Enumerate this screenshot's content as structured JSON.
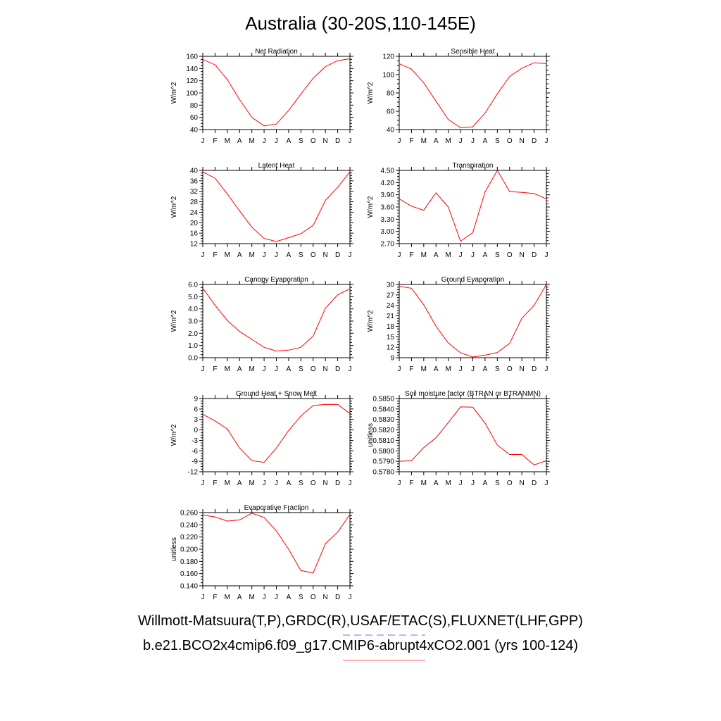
{
  "title": "Australia (30-20S,110-145E)",
  "colors": {
    "line": "#ff0000",
    "axis": "#000000",
    "legend_obs": "#6f6fff",
    "legend_model": "#ff5a5a"
  },
  "legend": {
    "obs": "Willmott-Matsuura(T,P),GRDC(R),USAF/ETAC(S),FLUXNET(LHF,GPP)",
    "model": "b.e21.BCO2x4cmip6.f09_g17.CMIP6-abrupt4xCO2.001 (yrs 100-124)"
  },
  "chart_data": [
    {
      "type": "line",
      "title": "Net Radiation",
      "ylabel": "W/m^2",
      "ylim": [
        40,
        160
      ],
      "yticks": [
        "40",
        "60",
        "80",
        "100",
        "120",
        "140",
        "160"
      ],
      "categories": [
        "J",
        "F",
        "M",
        "A",
        "M",
        "J",
        "J",
        "A",
        "S",
        "O",
        "N",
        "D",
        "J"
      ],
      "values": [
        155,
        146,
        122,
        89,
        60,
        46,
        49,
        71,
        98,
        124,
        143,
        153,
        156
      ]
    },
    {
      "type": "line",
      "title": "Sensible Heat",
      "ylabel": "W/m^2",
      "ylim": [
        40,
        120
      ],
      "yticks": [
        "40",
        "60",
        "80",
        "100",
        "120"
      ],
      "categories": [
        "J",
        "F",
        "M",
        "A",
        "M",
        "J",
        "J",
        "A",
        "S",
        "O",
        "N",
        "D",
        "J"
      ],
      "values": [
        112,
        106,
        91,
        71,
        51,
        42,
        43,
        58,
        79,
        98,
        107,
        113,
        112
      ]
    },
    {
      "type": "line",
      "title": "Latent Heat",
      "ylabel": "W/m^2",
      "ylim": [
        12,
        40
      ],
      "yticks": [
        "12",
        "16",
        "20",
        "24",
        "28",
        "32",
        "36",
        "40"
      ],
      "categories": [
        "J",
        "F",
        "M",
        "A",
        "M",
        "J",
        "J",
        "A",
        "S",
        "O",
        "N",
        "D",
        "J"
      ],
      "values": [
        39.5,
        37.0,
        31.0,
        24.5,
        18.3,
        14.0,
        12.8,
        14.3,
        15.8,
        19.0,
        28.5,
        33.5,
        39.5
      ]
    },
    {
      "type": "line",
      "title": "Transpiration",
      "ylabel": "W/m^2",
      "ylim": [
        2.7,
        4.5
      ],
      "yticks": [
        "2.70",
        "3.00",
        "3.30",
        "3.60",
        "3.90",
        "4.20",
        "4.50"
      ],
      "categories": [
        "J",
        "F",
        "M",
        "A",
        "M",
        "J",
        "J",
        "A",
        "S",
        "O",
        "N",
        "D",
        "J"
      ],
      "values": [
        3.8,
        3.62,
        3.52,
        3.95,
        3.6,
        2.76,
        2.97,
        3.97,
        4.5,
        3.98,
        3.96,
        3.93,
        3.8
      ]
    },
    {
      "type": "line",
      "title": "Canopy Evaporation",
      "ylabel": "W/m^2",
      "ylim": [
        0,
        6
      ],
      "yticks": [
        "0.0",
        "1.0",
        "2.0",
        "3.0",
        "4.0",
        "5.0",
        "6.0"
      ],
      "categories": [
        "J",
        "F",
        "M",
        "A",
        "M",
        "J",
        "J",
        "A",
        "S",
        "O",
        "N",
        "D",
        "J"
      ],
      "values": [
        5.7,
        4.3,
        3.05,
        2.15,
        1.5,
        0.85,
        0.55,
        0.62,
        0.85,
        1.78,
        4.05,
        5.15,
        5.65
      ]
    },
    {
      "type": "line",
      "title": "Ground Evaporation",
      "ylabel": "W/m^2",
      "ylim": [
        9,
        30
      ],
      "yticks": [
        "9",
        "12",
        "15",
        "18",
        "21",
        "24",
        "27",
        "30"
      ],
      "categories": [
        "J",
        "F",
        "M",
        "A",
        "M",
        "J",
        "J",
        "A",
        "S",
        "O",
        "N",
        "D",
        "J"
      ],
      "values": [
        29.5,
        28.9,
        24.2,
        18.0,
        13.2,
        10.4,
        9.2,
        9.7,
        10.5,
        13.1,
        20.3,
        24.0,
        30.0
      ]
    },
    {
      "type": "line",
      "title": "Ground Heat + Snow Melt",
      "ylabel": "W/m^2",
      "ylim": [
        -12,
        9
      ],
      "yticks": [
        "-12",
        "-9",
        "-6",
        "-3",
        "0",
        "3",
        "6",
        "9"
      ],
      "categories": [
        "J",
        "F",
        "M",
        "A",
        "M",
        "J",
        "J",
        "A",
        "S",
        "O",
        "N",
        "D",
        "J"
      ],
      "values": [
        4.5,
        2.6,
        0.3,
        -5.2,
        -8.8,
        -9.3,
        -5.2,
        -0.2,
        4.0,
        7.0,
        7.3,
        7.3,
        4.7
      ]
    },
    {
      "type": "line",
      "title": "Soil moisture factor (BTRAN or BTRANMN)",
      "ylabel": "unitless",
      "ylim": [
        0.578,
        0.585
      ],
      "yticks": [
        "0.5780",
        "0.5790",
        "0.5800",
        "0.5810",
        "0.5820",
        "0.5830",
        "0.5840",
        "0.5850"
      ],
      "categories": [
        "J",
        "F",
        "M",
        "A",
        "M",
        "J",
        "J",
        "A",
        "S",
        "O",
        "N",
        "D",
        "J"
      ],
      "values": [
        0.579,
        0.57905,
        0.5803,
        0.58125,
        0.5827,
        0.5842,
        0.58417,
        0.58265,
        0.58055,
        0.57965,
        0.57965,
        0.57865,
        0.57905
      ]
    },
    {
      "type": "line",
      "title": "Evaporative Fraction",
      "ylabel": "unitless",
      "ylim": [
        0.14,
        0.26
      ],
      "yticks": [
        "0.140",
        "0.160",
        "0.180",
        "0.200",
        "0.220",
        "0.240",
        "0.260"
      ],
      "categories": [
        "J",
        "F",
        "M",
        "A",
        "M",
        "J",
        "J",
        "A",
        "S",
        "O",
        "N",
        "D",
        "J"
      ],
      "values": [
        0.256,
        0.253,
        0.246,
        0.248,
        0.259,
        0.252,
        0.23,
        0.2,
        0.165,
        0.161,
        0.209,
        0.228,
        0.257
      ]
    }
  ]
}
